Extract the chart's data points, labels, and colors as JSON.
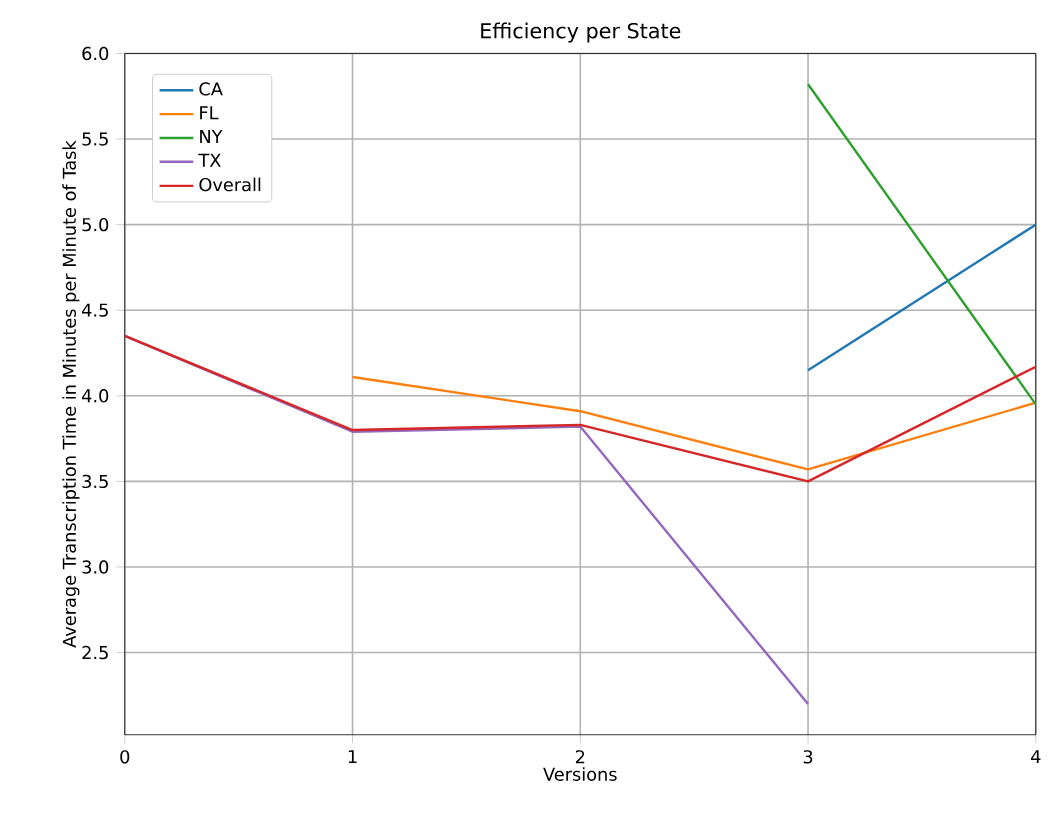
{
  "chart_data": {
    "type": "line",
    "title": "Efficiency per State",
    "xlabel": "Versions",
    "ylabel": "Average Transcription Time in Minutes per Minute of Task",
    "xlim": [
      0,
      4
    ],
    "ylim": [
      2.02,
      6.0
    ],
    "xticks": [
      0,
      1,
      2,
      3,
      4
    ],
    "yticks": [
      2.5,
      {
        "value": 3,
        "label": "3.0"
      },
      3.5,
      {
        "value": 4,
        "label": "4.0"
      },
      4.5,
      {
        "value": 5,
        "label": "5.0"
      },
      5.5,
      {
        "value": 6,
        "label": "6.0"
      }
    ],
    "grid": true,
    "legend": "top left",
    "marker": "none",
    "line_style": "solid",
    "series": [
      {
        "name": "CA",
        "color": "#1f77b4",
        "x": [
          3,
          4
        ],
        "values": [
          4.15,
          5.0
        ]
      },
      {
        "name": "FL",
        "color": "#ff7f0e",
        "x": [
          1,
          2,
          3,
          4
        ],
        "values": [
          4.11,
          3.91,
          3.57,
          3.96
        ]
      },
      {
        "name": "NY",
        "color": "#2ca02c",
        "x": [
          3,
          4
        ],
        "values": [
          5.82,
          3.95
        ]
      },
      {
        "name": "TX",
        "color": "#9467bd",
        "x": [
          0,
          1,
          2,
          3
        ],
        "values": [
          4.35,
          3.79,
          3.82,
          2.2
        ]
      },
      {
        "name": "Overall",
        "color": "#d62728",
        "x": [
          0,
          1,
          2,
          3,
          4
        ],
        "values": [
          4.35,
          3.8,
          3.83,
          3.5,
          4.17
        ]
      }
    ]
  }
}
